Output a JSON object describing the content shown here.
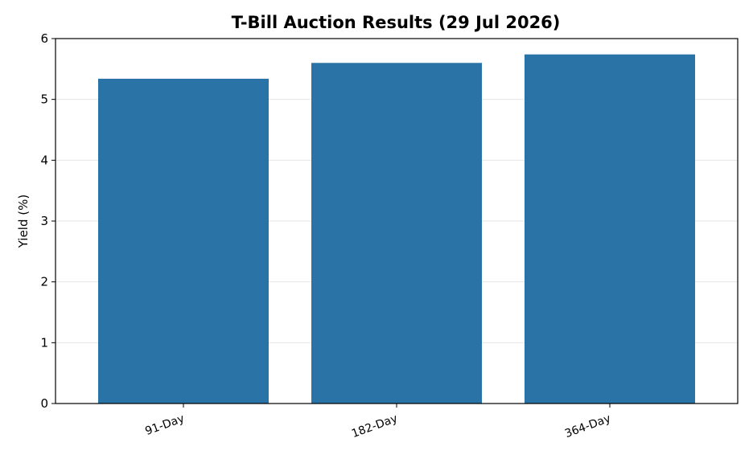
{
  "chart_data": {
    "type": "bar",
    "title": "T-Bill Auction Results (29 Jul 2026)",
    "xlabel": "",
    "ylabel": "Yield (%)",
    "categories": [
      "91-Day",
      "182-Day",
      "364-Day"
    ],
    "values": [
      5.34,
      5.6,
      5.74
    ],
    "ylim": [
      0,
      6
    ],
    "yticks": [
      0,
      1,
      2,
      3,
      4,
      5,
      6
    ],
    "grid": "y",
    "bar_color": "#2a73a6",
    "grid_color": "#e6e6e6",
    "axis_color": "#000000"
  }
}
